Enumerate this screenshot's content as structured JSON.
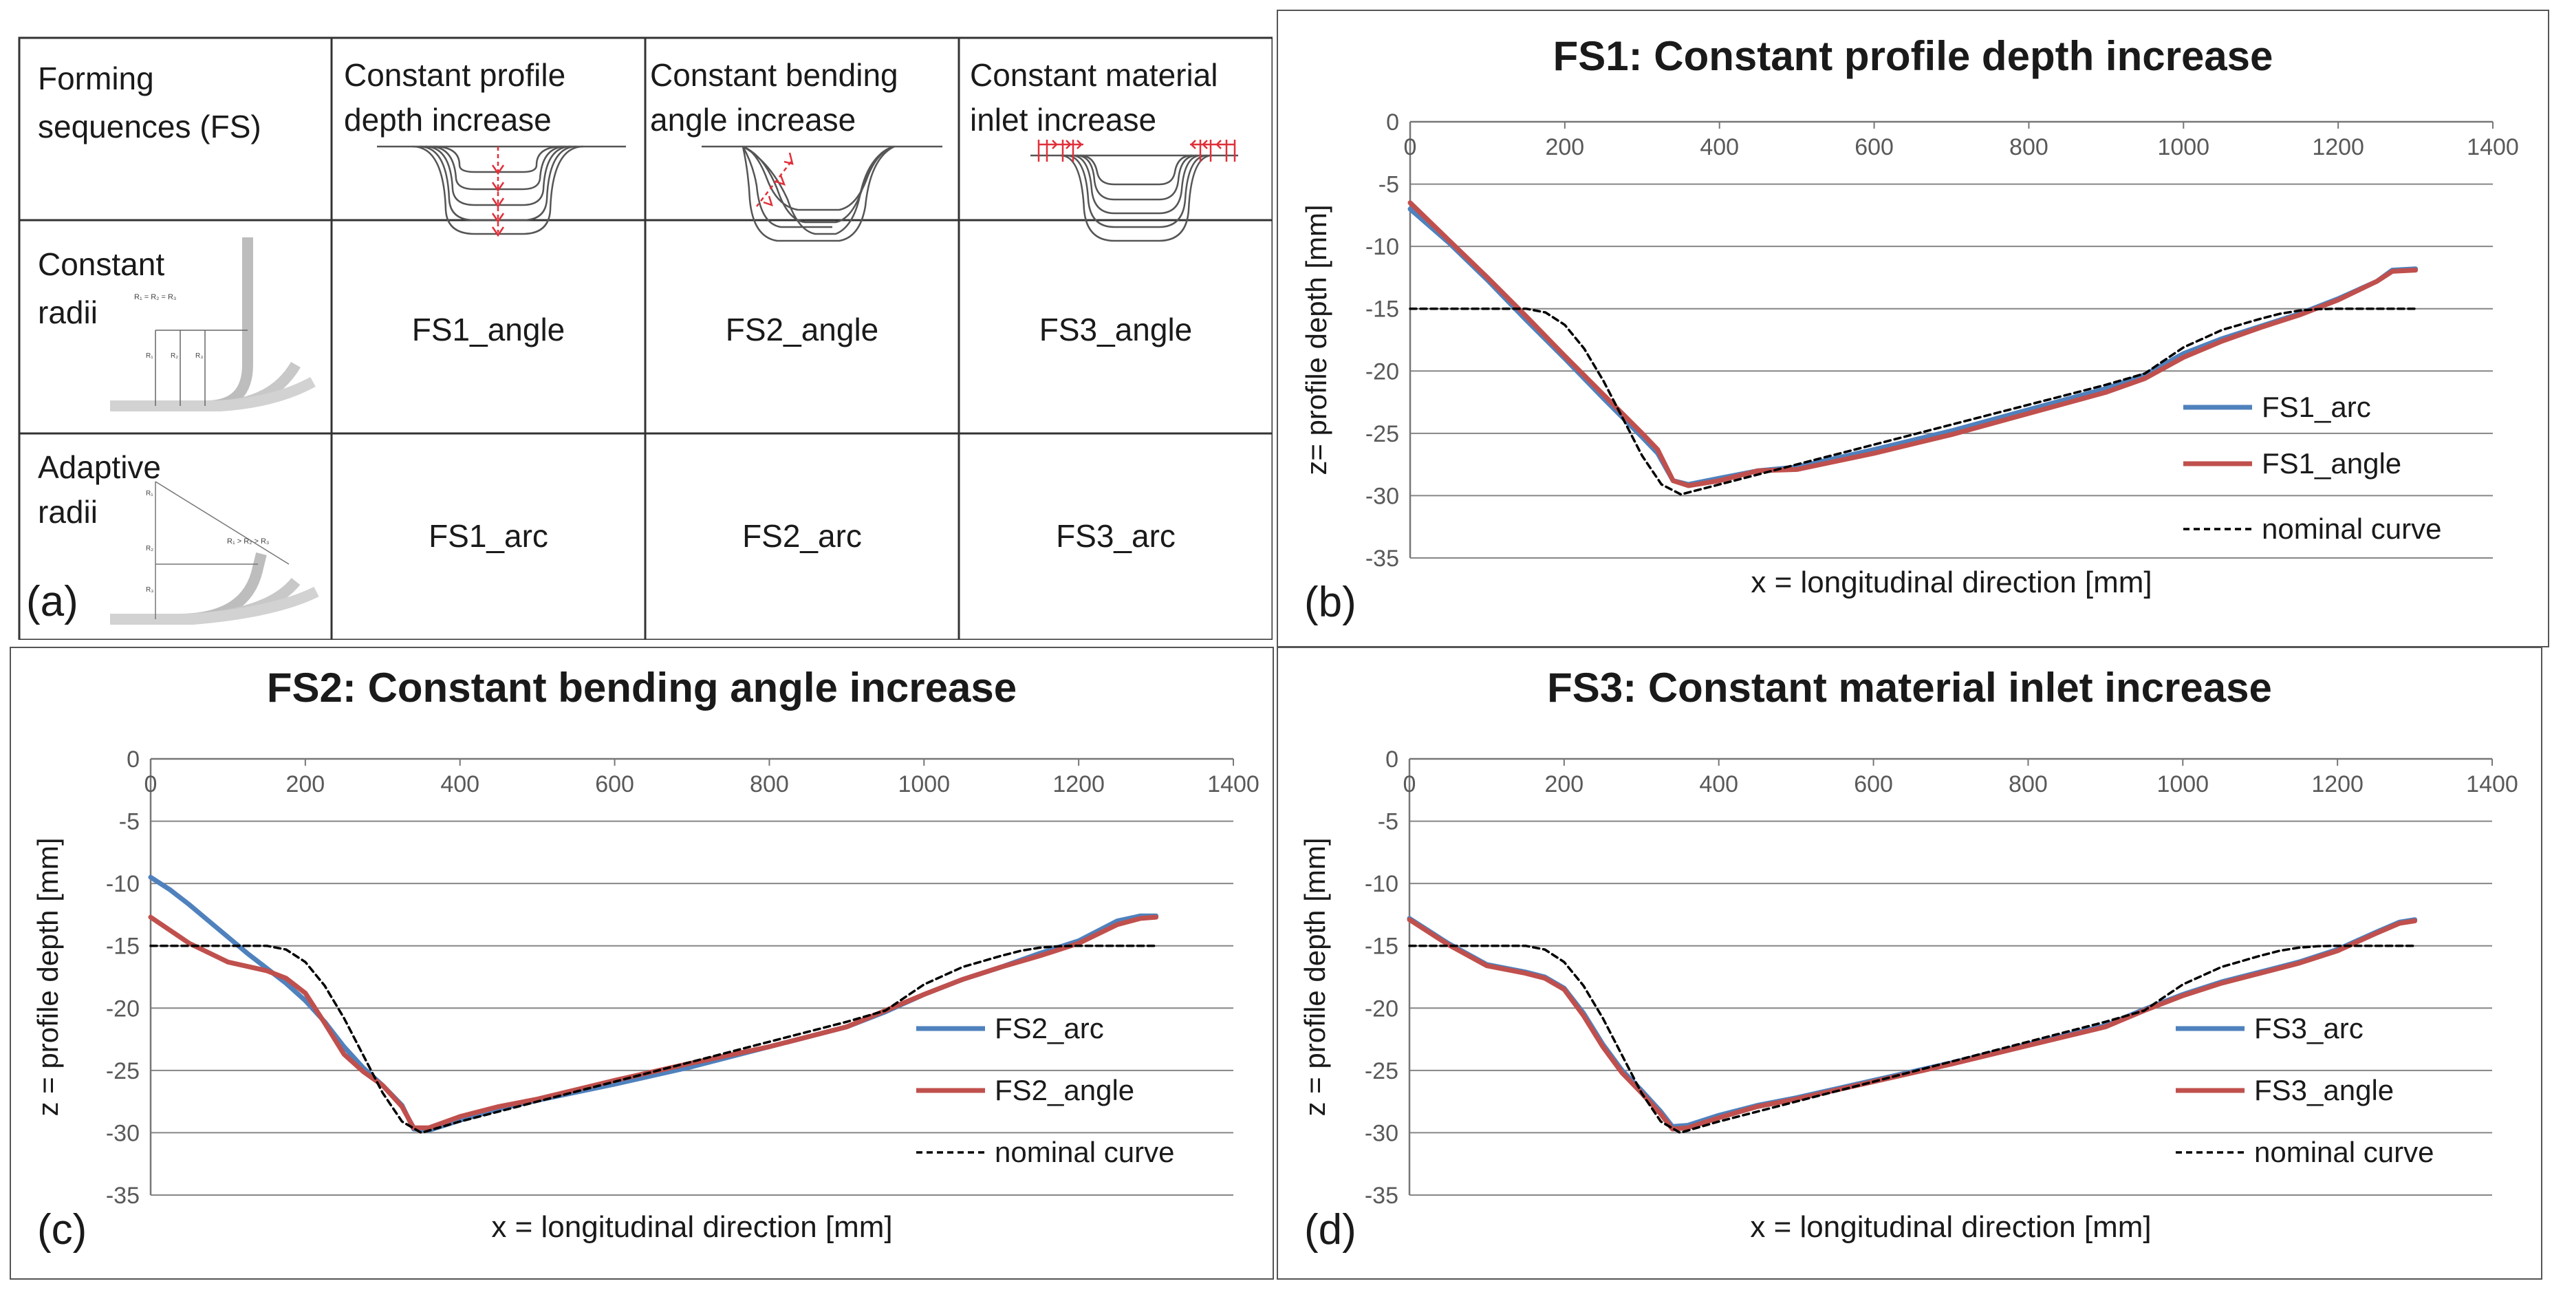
{
  "panel_a": {
    "label": "(a)",
    "header": [
      "Forming sequences (FS)",
      "Constant profile depth increase",
      "Constant bending angle increase",
      "Constant material inlet increase"
    ],
    "header_lines": [
      [
        "Forming",
        "sequences (FS)"
      ],
      [
        "Constant profile",
        "depth increase"
      ],
      [
        "Constant bending",
        "angle increase"
      ],
      [
        "Constant material",
        "inlet increase"
      ]
    ],
    "rows": [
      {
        "label": "Constant radii",
        "label_lines": [
          "Constant",
          "radii"
        ],
        "cells": [
          "FS1_angle",
          "FS2_angle",
          "FS3_angle"
        ]
      },
      {
        "label": "Adaptive radii",
        "label_lines": [
          "Adaptive",
          "radii"
        ],
        "cells": [
          "FS1_arc",
          "FS2_arc",
          "FS3_arc"
        ]
      }
    ]
  },
  "colors": {
    "arc": "#4f81bd",
    "angle": "#c0504d",
    "nominal": "#000000",
    "grid": "#868686",
    "schematic": "#555555",
    "arrow": "#e0303a"
  },
  "chart_data": [
    {
      "id": "b",
      "panel_label": "(b)",
      "type": "line",
      "title": "FS1: Constant profile depth increase",
      "xlabel": "x = longitudinal direction [mm]",
      "ylabel": "z= profile depth [mm]",
      "xlim": [
        0,
        1400
      ],
      "ylim": [
        -35,
        0
      ],
      "xticks": [
        0,
        200,
        400,
        600,
        800,
        1000,
        1200,
        1400
      ],
      "yticks": [
        0,
        -5,
        -10,
        -15,
        -20,
        -25,
        -30,
        -35
      ],
      "grid": true,
      "legend_position": "right",
      "series": [
        {
          "name": "FS1_arc",
          "style": "arc",
          "x": [
            0,
            50,
            100,
            150,
            200,
            250,
            300,
            320,
            340,
            360,
            400,
            450,
            500,
            600,
            700,
            800,
            900,
            950,
            1000,
            1050,
            1100,
            1150,
            1200,
            1250,
            1270,
            1300
          ],
          "y": [
            -7,
            -9.7,
            -12.7,
            -15.9,
            -19.0,
            -22.2,
            -25.3,
            -26.6,
            -28.8,
            -29.1,
            -28.6,
            -28.0,
            -27.7,
            -26.3,
            -24.8,
            -23.1,
            -21.4,
            -20.3,
            -18.6,
            -17.4,
            -16.4,
            -15.4,
            -14.2,
            -12.8,
            -11.9,
            -11.8
          ]
        },
        {
          "name": "FS1_angle",
          "style": "angle",
          "x": [
            0,
            50,
            100,
            150,
            200,
            250,
            300,
            320,
            340,
            360,
            400,
            450,
            500,
            600,
            700,
            800,
            900,
            950,
            1000,
            1050,
            1100,
            1150,
            1200,
            1250,
            1270,
            1300
          ],
          "y": [
            -6.5,
            -9.5,
            -12.5,
            -15.6,
            -18.8,
            -21.9,
            -25.0,
            -26.3,
            -28.8,
            -29.2,
            -28.8,
            -28.0,
            -27.9,
            -26.6,
            -25.1,
            -23.4,
            -21.7,
            -20.6,
            -18.9,
            -17.6,
            -16.5,
            -15.5,
            -14.3,
            -12.8,
            -12.0,
            -11.9
          ]
        },
        {
          "name": "nominal curve",
          "style": "nominal",
          "x": [
            0,
            50,
            100,
            150,
            175,
            200,
            225,
            250,
            275,
            300,
            325,
            350,
            400,
            500,
            600,
            700,
            800,
            900,
            950,
            1000,
            1050,
            1100,
            1125,
            1150,
            1175,
            1200,
            1300
          ],
          "y": [
            -15,
            -15,
            -15,
            -15,
            -15.3,
            -16.3,
            -18.2,
            -20.8,
            -23.8,
            -26.8,
            -29.1,
            -29.9,
            -29.1,
            -27.5,
            -25.9,
            -24.3,
            -22.7,
            -21.1,
            -20.2,
            -18.1,
            -16.7,
            -15.8,
            -15.4,
            -15.15,
            -15.03,
            -15,
            -15
          ]
        }
      ]
    },
    {
      "id": "c",
      "panel_label": "(c)",
      "type": "line",
      "title": "FS2: Constant bending angle increase",
      "xlabel": "x = longitudinal direction [mm]",
      "ylabel": "z = profile depth [mm]",
      "xlim": [
        0,
        1400
      ],
      "ylim": [
        -35,
        0
      ],
      "xticks": [
        0,
        200,
        400,
        600,
        800,
        1000,
        1200,
        1400
      ],
      "yticks": [
        0,
        -5,
        -10,
        -15,
        -20,
        -25,
        -30,
        -35
      ],
      "grid": true,
      "legend_position": "right",
      "series": [
        {
          "name": "FS2_arc",
          "style": "arc",
          "x": [
            0,
            25,
            50,
            75,
            100,
            125,
            150,
            175,
            200,
            225,
            250,
            275,
            300,
            325,
            340,
            360,
            400,
            450,
            500,
            600,
            700,
            800,
            900,
            950,
            1000,
            1050,
            1100,
            1150,
            1200,
            1250,
            1280,
            1300
          ],
          "y": [
            -9.5,
            -10.5,
            -11.7,
            -13.0,
            -14.3,
            -15.6,
            -16.8,
            -18.0,
            -19.4,
            -21.1,
            -23.1,
            -24.8,
            -26.2,
            -27.8,
            -29.7,
            -29.8,
            -29.0,
            -28.1,
            -27.4,
            -26.1,
            -24.7,
            -23.1,
            -21.5,
            -20.3,
            -18.9,
            -17.7,
            -16.7,
            -15.6,
            -14.6,
            -13.0,
            -12.6,
            -12.6
          ]
        },
        {
          "name": "FS2_angle",
          "style": "angle",
          "x": [
            0,
            50,
            100,
            150,
            175,
            200,
            225,
            250,
            275,
            300,
            325,
            340,
            360,
            400,
            450,
            500,
            600,
            700,
            800,
            900,
            950,
            1000,
            1050,
            1100,
            1150,
            1200,
            1250,
            1280,
            1300
          ],
          "y": [
            -12.7,
            -14.8,
            -16.3,
            -17.0,
            -17.6,
            -18.8,
            -21.2,
            -23.7,
            -25.1,
            -26.2,
            -27.9,
            -29.6,
            -29.6,
            -28.7,
            -27.9,
            -27.3,
            -25.8,
            -24.4,
            -23.1,
            -21.5,
            -20.2,
            -18.9,
            -17.7,
            -16.7,
            -15.8,
            -14.8,
            -13.3,
            -12.8,
            -12.7
          ]
        },
        {
          "name": "nominal curve",
          "style": "nominal",
          "x": [
            0,
            50,
            100,
            150,
            175,
            200,
            225,
            250,
            275,
            300,
            325,
            350,
            400,
            500,
            600,
            700,
            800,
            900,
            950,
            1000,
            1050,
            1100,
            1125,
            1150,
            1175,
            1200,
            1300
          ],
          "y": [
            -15,
            -15,
            -15,
            -15,
            -15.3,
            -16.3,
            -18.2,
            -20.8,
            -23.8,
            -26.8,
            -29.1,
            -30.0,
            -29.1,
            -27.5,
            -25.9,
            -24.3,
            -22.7,
            -21.1,
            -20.2,
            -18.1,
            -16.7,
            -15.8,
            -15.4,
            -15.15,
            -15.03,
            -15,
            -15
          ]
        }
      ]
    },
    {
      "id": "d",
      "panel_label": "(d)",
      "type": "line",
      "title": "FS3: Constant material inlet increase",
      "xlabel": "x = longitudinal direction [mm]",
      "ylabel": "z = profile depth [mm]",
      "xlim": [
        0,
        1400
      ],
      "ylim": [
        -35,
        0
      ],
      "xticks": [
        0,
        200,
        400,
        600,
        800,
        1000,
        1200,
        1400
      ],
      "yticks": [
        0,
        -5,
        -10,
        -15,
        -20,
        -25,
        -30,
        -35
      ],
      "grid": true,
      "legend_position": "right",
      "series": [
        {
          "name": "FS3_arc",
          "style": "arc",
          "x": [
            0,
            50,
            100,
            150,
            175,
            200,
            225,
            250,
            275,
            300,
            325,
            340,
            360,
            400,
            450,
            500,
            600,
            700,
            800,
            900,
            950,
            1000,
            1050,
            1100,
            1150,
            1200,
            1250,
            1280,
            1300
          ],
          "y": [
            -12.8,
            -14.8,
            -16.5,
            -17.1,
            -17.5,
            -18.4,
            -20.4,
            -22.9,
            -25.0,
            -26.6,
            -28.3,
            -29.5,
            -29.4,
            -28.6,
            -27.8,
            -27.2,
            -25.8,
            -24.4,
            -22.9,
            -21.4,
            -20.1,
            -18.9,
            -17.9,
            -17.1,
            -16.3,
            -15.3,
            -13.9,
            -13.1,
            -12.9
          ]
        },
        {
          "name": "FS3_angle",
          "style": "angle",
          "x": [
            0,
            50,
            100,
            150,
            175,
            200,
            225,
            250,
            275,
            300,
            325,
            340,
            360,
            400,
            450,
            500,
            600,
            700,
            800,
            900,
            950,
            1000,
            1050,
            1100,
            1150,
            1200,
            1250,
            1280,
            1300
          ],
          "y": [
            -12.9,
            -14.9,
            -16.6,
            -17.2,
            -17.6,
            -18.5,
            -20.6,
            -23.1,
            -25.2,
            -26.8,
            -28.5,
            -29.7,
            -29.6,
            -28.8,
            -27.9,
            -27.3,
            -25.9,
            -24.5,
            -23.0,
            -21.5,
            -20.2,
            -19.0,
            -18.0,
            -17.2,
            -16.4,
            -15.4,
            -14.0,
            -13.2,
            -13.0
          ]
        },
        {
          "name": "nominal curve",
          "style": "nominal",
          "x": [
            0,
            50,
            100,
            150,
            175,
            200,
            225,
            250,
            275,
            300,
            325,
            350,
            400,
            500,
            600,
            700,
            800,
            900,
            950,
            1000,
            1050,
            1100,
            1125,
            1150,
            1175,
            1200,
            1300
          ],
          "y": [
            -15,
            -15,
            -15,
            -15,
            -15.3,
            -16.3,
            -18.2,
            -20.8,
            -23.8,
            -26.8,
            -29.1,
            -30.0,
            -29.1,
            -27.5,
            -25.9,
            -24.3,
            -22.7,
            -21.1,
            -20.2,
            -18.1,
            -16.7,
            -15.8,
            -15.4,
            -15.15,
            -15.03,
            -15,
            -15
          ]
        }
      ]
    }
  ]
}
